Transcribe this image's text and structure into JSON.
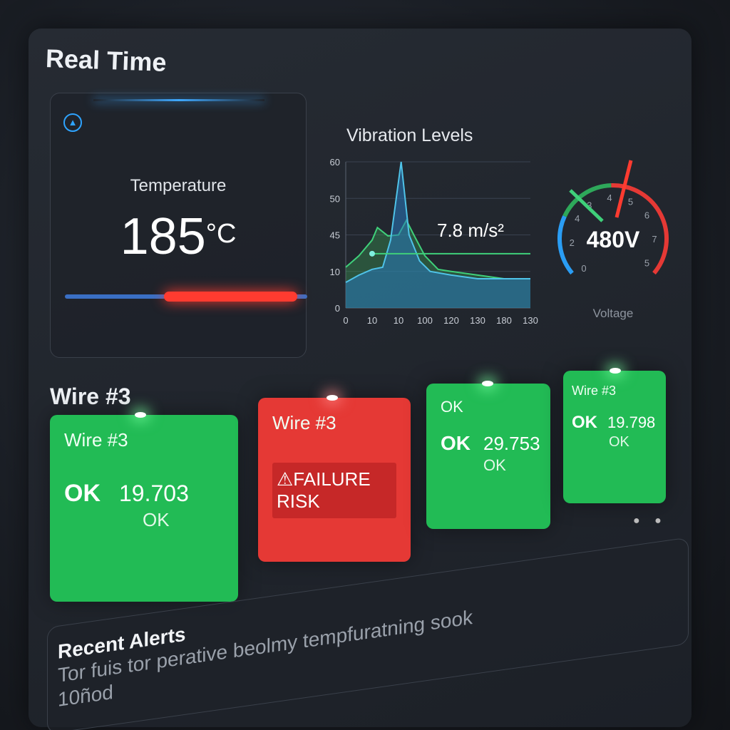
{
  "header": {
    "title": "Real Time"
  },
  "temperature": {
    "label": "Temperature",
    "value": "185",
    "unit": "°C",
    "icon": "alert-triangle-icon",
    "level_percent": 55,
    "colors": {
      "cold": "#3a6fc4",
      "hot": "#ff3b30"
    }
  },
  "vibration": {
    "title": "Vibration Levels",
    "readout": "7.8 m/s²"
  },
  "voltage": {
    "value": "480V",
    "label": "Voltage",
    "scale_labels": [
      "0",
      "2",
      "4",
      "3",
      "4",
      "5",
      "6",
      "7",
      "5"
    ]
  },
  "section": {
    "title": "Wire #3"
  },
  "cards": [
    {
      "status": "ok",
      "head": "Wire #3",
      "ok": "OK",
      "value": "19.703",
      "sub": "OK",
      "color": "#22bb55"
    },
    {
      "status": "failure",
      "head": "Wire #3",
      "badge": "⚠FAILURE RISK",
      "color": "#e53935"
    },
    {
      "status": "ok",
      "head": "OK",
      "ok": "OK",
      "value": "29.753",
      "sub": "OK",
      "color": "#22bb55"
    },
    {
      "status": "ok",
      "head": "Wire #3",
      "ok": "OK",
      "value": "19.798",
      "sub": "OK",
      "color": "#22bb55"
    }
  ],
  "alerts": {
    "title": "Recent Alerts",
    "text": "Tor fuis tor perative beolmy tempfuratning sook",
    "time": "10ñod"
  },
  "chart_data": {
    "type": "area",
    "title": "Vibration Levels",
    "annotation": "7.8 m/s²",
    "x_tick_labels": [
      "0",
      "10",
      "10",
      "100",
      "120",
      "130",
      "180",
      "130"
    ],
    "y_tick_labels": [
      "0",
      "10",
      "45",
      "50",
      "60"
    ],
    "grid": true,
    "series": [
      {
        "color": "#3fd07a",
        "points": [
          [
            0,
            14
          ],
          [
            0.5,
            25
          ],
          [
            1,
            40
          ],
          [
            1.2,
            46
          ],
          [
            1.6,
            44
          ],
          [
            2,
            45
          ],
          [
            2.3,
            47
          ],
          [
            2.6,
            44
          ],
          [
            3,
            25
          ],
          [
            3.5,
            12
          ],
          [
            4,
            10
          ],
          [
            5,
            9
          ],
          [
            6,
            8
          ],
          [
            7,
            8
          ]
        ]
      },
      {
        "color": "#4fc3e8",
        "points": [
          [
            0,
            7
          ],
          [
            0.5,
            9
          ],
          [
            1,
            12
          ],
          [
            1.4,
            14
          ],
          [
            1.7,
            40
          ],
          [
            2.1,
            60
          ],
          [
            2.4,
            45
          ],
          [
            2.8,
            20
          ],
          [
            3.2,
            10
          ],
          [
            4,
            9
          ],
          [
            5,
            8
          ],
          [
            6,
            8
          ],
          [
            7,
            8
          ]
        ]
      }
    ],
    "threshold": {
      "value": 27,
      "color": "#3fd07a"
    }
  }
}
